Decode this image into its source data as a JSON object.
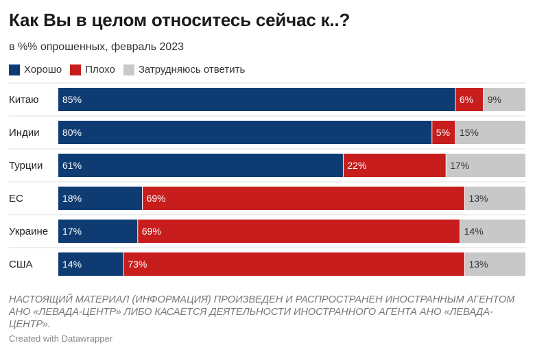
{
  "header": {
    "title": "Как Вы в целом относитесь сейчас к..?",
    "subtitle": "в %% опрошенных, февраль 2023"
  },
  "chart_data": {
    "type": "bar",
    "orientation": "horizontal",
    "stacked": true,
    "categories": [
      "Китаю",
      "Индии",
      "Турции",
      "ЕС",
      "Украине",
      "США"
    ],
    "series": [
      {
        "name": "Хорошо",
        "color": "#0d3b72",
        "values": [
          85,
          80,
          61,
          18,
          17,
          14
        ]
      },
      {
        "name": "Плохо",
        "color": "#c71e1d",
        "values": [
          6,
          5,
          22,
          69,
          69,
          73
        ]
      },
      {
        "name": "Затрудняюсь ответить",
        "color": "#c8c8c8",
        "values": [
          9,
          15,
          17,
          13,
          14,
          13
        ]
      }
    ],
    "value_suffix": "%",
    "xlim": [
      0,
      100
    ],
    "legend": "top-left",
    "grid": false
  },
  "footer": {
    "note": "НАСТОЯЩИЙ МАТЕРИАЛ (ИНФОРМАЦИЯ) ПРОИЗВЕДЕН И РАСПРОСТРАНЕН ИНОСТРАННЫМ АГЕНТОМ АНО «ЛЕВАДА-ЦЕНТР» ЛИБО КАСАЕТСЯ ДЕЯТЕЛЬНОСТИ ИНОСТРАННОГО АГЕНТА АНО «ЛЕВАДА-ЦЕНТР».",
    "credit": "Created with Datawrapper"
  }
}
